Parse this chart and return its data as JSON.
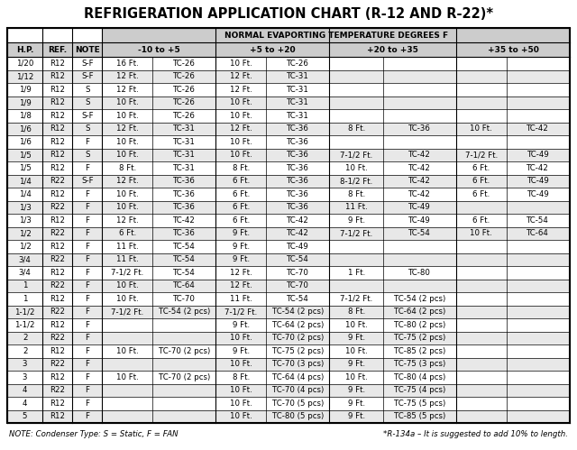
{
  "title": "REFRIGERATION APPLICATION CHART (R-12 AND R-22)*",
  "col_header1": "NORMAL EVAPORTING TEMPERATURE DEGREES F",
  "note_left": "NOTE: Condenser Type: S = Static, F = FAN",
  "note_right": "*R-134a – It is suggested to add 10% to length.",
  "rows": [
    [
      "1/20",
      "R12",
      "S-F",
      "16 Ft.",
      "TC-26",
      "10 Ft.",
      "TC-26",
      "",
      "",
      "",
      ""
    ],
    [
      "1/12",
      "R12",
      "S-F",
      "12 Ft.",
      "TC-26",
      "12 Ft.",
      "TC-31",
      "",
      "",
      "",
      ""
    ],
    [
      "1/9",
      "R12",
      "S",
      "12 Ft.",
      "TC-26",
      "12 Ft.",
      "TC-31",
      "",
      "",
      "",
      ""
    ],
    [
      "1/9",
      "R12",
      "S",
      "10 Ft.",
      "TC-26",
      "10 Ft.",
      "TC-31",
      "",
      "",
      "",
      ""
    ],
    [
      "1/8",
      "R12",
      "S-F",
      "10 Ft.",
      "TC-26",
      "10 Ft.",
      "TC-31",
      "",
      "",
      "",
      ""
    ],
    [
      "1/6",
      "R12",
      "S",
      "12 Ft.",
      "TC-31",
      "12 Ft.",
      "TC-36",
      "8 Ft.",
      "TC-36",
      "10 Ft.",
      "TC-42"
    ],
    [
      "1/6",
      "R12",
      "F",
      "10 Ft.",
      "TC-31",
      "10 Ft.",
      "TC-36",
      "",
      "",
      "",
      ""
    ],
    [
      "1/5",
      "R12",
      "S",
      "10 Ft.",
      "TC-31",
      "10 Ft.",
      "TC-36",
      "7-1/2 Ft.",
      "TC-42",
      "7-1/2 Ft.",
      "TC-49"
    ],
    [
      "1/5",
      "R12",
      "F",
      "8 Ft.",
      "TC-31",
      "8 Ft.",
      "TC-36",
      "10 Ft.",
      "TC-42",
      "6 Ft.",
      "TC-42"
    ],
    [
      "1/4",
      "R22",
      "S-F",
      "12 Ft.",
      "TC-36",
      "6 Ft.",
      "TC-36",
      "8-1/2 Ft.",
      "TC-42",
      "6 Ft.",
      "TC-49"
    ],
    [
      "1/4",
      "R12",
      "F",
      "10 Ft.",
      "TC-36",
      "6 Ft.",
      "TC-36",
      "8 Ft.",
      "TC-42",
      "6 Ft.",
      "TC-49"
    ],
    [
      "1/3",
      "R22",
      "F",
      "10 Ft.",
      "TC-36",
      "6 Ft.",
      "TC-36",
      "11 Ft.",
      "TC-49",
      "",
      ""
    ],
    [
      "1/3",
      "R12",
      "F",
      "12 Ft.",
      "TC-42",
      "6 Ft.",
      "TC-42",
      "9 Ft.",
      "TC-49",
      "6 Ft.",
      "TC-54"
    ],
    [
      "1/2",
      "R22",
      "F",
      "6 Ft.",
      "TC-36",
      "9 Ft.",
      "TC-42",
      "7-1/2 Ft.",
      "TC-54",
      "10 Ft.",
      "TC-64"
    ],
    [
      "1/2",
      "R12",
      "F",
      "11 Ft.",
      "TC-54",
      "9 Ft.",
      "TC-49",
      "",
      "",
      "",
      ""
    ],
    [
      "3/4",
      "R22",
      "F",
      "11 Ft.",
      "TC-54",
      "9 Ft.",
      "TC-54",
      "",
      "",
      "",
      ""
    ],
    [
      "3/4",
      "R12",
      "F",
      "7-1/2 Ft.",
      "TC-54",
      "12 Ft.",
      "TC-70",
      "1 Ft.",
      "TC-80",
      "",
      ""
    ],
    [
      "1",
      "R22",
      "F",
      "10 Ft.",
      "TC-64",
      "12 Ft.",
      "TC-70",
      "",
      "",
      "",
      ""
    ],
    [
      "1",
      "R12",
      "F",
      "10 Ft.",
      "TC-70",
      "11 Ft.",
      "TC-54",
      "7-1/2 Ft.",
      "TC-54 (2 pcs)",
      "",
      ""
    ],
    [
      "1-1/2",
      "R22",
      "F",
      "7-1/2 Ft.",
      "TC-54 (2 pcs)",
      "7-1/2 Ft.",
      "TC-54 (2 pcs)",
      "8 Ft.",
      "TC-64 (2 pcs)",
      "",
      ""
    ],
    [
      "1-1/2",
      "R12",
      "F",
      "",
      "",
      "9 Ft.",
      "TC-64 (2 pcs)",
      "10 Ft.",
      "TC-80 (2 pcs)",
      "",
      ""
    ],
    [
      "2",
      "R22",
      "F",
      "",
      "",
      "10 Ft.",
      "TC-70 (2 pcs)",
      "9 Ft.",
      "TC-75 (2 pcs)",
      "",
      ""
    ],
    [
      "2",
      "R12",
      "F",
      "10 Ft.",
      "TC-70 (2 pcs)",
      "9 Ft.",
      "TC-75 (2 pcs)",
      "10 Ft.",
      "TC-85 (2 pcs)",
      "",
      ""
    ],
    [
      "3",
      "R22",
      "F",
      "",
      "",
      "10 Ft.",
      "TC-70 (3 pcs)",
      "9 Ft.",
      "TC-75 (3 pcs)",
      "",
      ""
    ],
    [
      "3",
      "R12",
      "F",
      "10 Ft.",
      "TC-70 (2 pcs)",
      "8 Ft.",
      "TC-64 (4 pcs)",
      "10 Ft.",
      "TC-80 (4 pcs)",
      "",
      ""
    ],
    [
      "4",
      "R22",
      "F",
      "",
      "",
      "10 Ft.",
      "TC-70 (4 pcs)",
      "9 Ft.",
      "TC-75 (4 pcs)",
      "",
      ""
    ],
    [
      "4",
      "R12",
      "F",
      "",
      "",
      "10 Ft.",
      "TC-70 (5 pcs)",
      "9 Ft.",
      "TC-75 (5 pcs)",
      "",
      ""
    ],
    [
      "5",
      "R12",
      "F",
      "",
      "",
      "10 Ft.",
      "TC-80 (5 pcs)",
      "9 Ft.",
      "TC-85 (5 pcs)",
      "",
      ""
    ]
  ],
  "bg_color": "#ffffff",
  "header_bg": "#cccccc",
  "row_bg_even": "#ffffff",
  "row_bg_odd": "#e8e8e8",
  "title_fontsize": 10.5,
  "header_fontsize": 6.5,
  "cell_fontsize": 6.2
}
